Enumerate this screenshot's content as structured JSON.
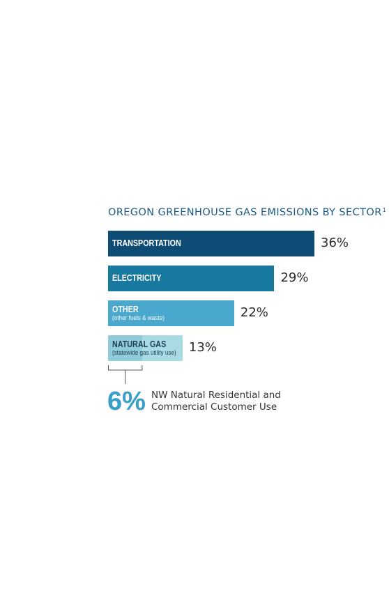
{
  "chart_data": {
    "type": "bar",
    "title": "OREGON GREENHOUSE GAS EMISSIONS BY SECTOR",
    "title_footnote": "1",
    "orientation": "horizontal",
    "categories": [
      "TRANSPORTATION",
      "ELECTRICITY",
      "OTHER",
      "NATURAL GAS"
    ],
    "sublabels": [
      "",
      "",
      "(other fuels & waste)",
      "(statewide gas utility use)"
    ],
    "values": [
      36,
      29,
      22,
      13
    ],
    "value_labels": [
      "36%",
      "29%",
      "22%",
      "13%"
    ],
    "colors": [
      "#0f4c75",
      "#17799f",
      "#4aa7cd",
      "#a8dbe4"
    ],
    "highlight_color": "#8fcbd9",
    "xlim": [
      0,
      36
    ],
    "callout": {
      "value": 6,
      "value_label": "6%",
      "text_line1": "NW Natural Residential and",
      "text_line2": "Commercial Customer Use",
      "color": "#3a9fc6"
    }
  }
}
